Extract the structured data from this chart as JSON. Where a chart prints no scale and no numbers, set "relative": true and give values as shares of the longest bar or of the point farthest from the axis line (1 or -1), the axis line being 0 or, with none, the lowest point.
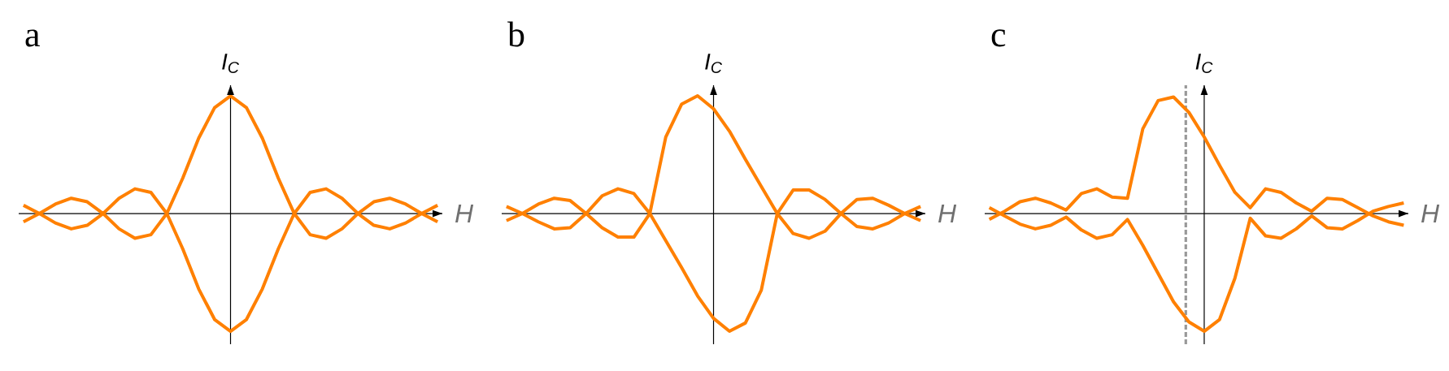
{
  "chart_data": [
    {
      "type": "line",
      "title": "a",
      "xlabel": "H",
      "ylabel": "I$_{C}$",
      "relative": true,
      "categories": [
        null,
        null,
        null,
        null,
        null,
        null,
        null,
        null,
        null,
        null,
        null,
        null,
        null,
        null,
        null,
        null,
        null,
        null,
        null,
        null,
        null,
        null,
        null,
        null,
        null,
        null,
        null
      ],
      "series": [
        {
          "color": "#ff8000",
          "values": [
            -0.07,
            0,
            0.08,
            0.13,
            0.1,
            0,
            0.13,
            0.21,
            0.18,
            0,
            0.3,
            0.64,
            0.9,
            1,
            0.9,
            0.64,
            0.3,
            0,
            0.18,
            0.21,
            0.13,
            0,
            0.1,
            0.13,
            0.08,
            0,
            -0.07
          ]
        },
        {
          "color": "#ff8000",
          "values": [
            0.07,
            0,
            -0.08,
            -0.13,
            -0.1,
            0,
            -0.13,
            -0.21,
            -0.18,
            0,
            -0.3,
            -0.64,
            -0.9,
            -1,
            -0.9,
            -0.64,
            -0.3,
            0,
            -0.18,
            -0.21,
            -0.13,
            0,
            -0.1,
            -0.13,
            -0.08,
            0,
            0.07
          ]
        }
      ]
    },
    {
      "type": "line",
      "title": "b",
      "xlabel": "H",
      "ylabel": "I$_{C}$",
      "relative": true,
      "categories": [
        null,
        null,
        null,
        null,
        null,
        null,
        null,
        null,
        null,
        null,
        null,
        null,
        null,
        null,
        null,
        null,
        null,
        null,
        null,
        null,
        null,
        null,
        null,
        null,
        null,
        null,
        null
      ],
      "series": [
        {
          "color": "#ff8000",
          "values": [
            -0.06,
            0,
            0.08,
            0.13,
            0.11,
            0,
            0.15,
            0.21,
            0.17,
            0,
            0.65,
            0.93,
            1,
            0.89,
            0.7,
            0.46,
            0.23,
            0,
            0.2,
            0.2,
            0.12,
            0,
            0.12,
            0.13,
            0.07,
            0,
            -0.06
          ]
        },
        {
          "color": "#ff8000",
          "values": [
            0.06,
            0,
            -0.07,
            -0.13,
            -0.12,
            0,
            -0.12,
            -0.2,
            -0.2,
            0,
            -0.23,
            -0.46,
            -0.7,
            -0.89,
            -1,
            -0.93,
            -0.65,
            0,
            -0.17,
            -0.21,
            -0.15,
            0,
            -0.11,
            -0.13,
            -0.08,
            0,
            0.06
          ]
        }
      ]
    },
    {
      "type": "line",
      "title": "c",
      "xlabel": "H",
      "ylabel": "I$_{C}$",
      "relative": true,
      "categories": [
        null,
        null,
        null,
        null,
        null,
        null,
        null,
        null,
        null,
        null,
        null,
        null,
        null,
        null,
        null,
        null,
        null,
        null,
        null,
        null,
        null,
        null,
        null,
        null,
        null,
        null,
        null,
        null
      ],
      "series": [
        {
          "color": "#ff8000",
          "values": [
            -0.05,
            0.02,
            0.1,
            0.13,
            0.09,
            0.03,
            0.17,
            0.21,
            0.14,
            0.13,
            0.72,
            0.96,
            0.99,
            0.86,
            0.65,
            0.41,
            0.18,
            0.05,
            0.21,
            0.18,
            0.09,
            0.02,
            0.13,
            0.12,
            0.05,
            -0.02,
            -0.07,
            -0.1
          ]
        },
        {
          "color": "#ff8000",
          "values": [
            0.05,
            -0.02,
            -0.09,
            -0.13,
            -0.1,
            -0.03,
            -0.14,
            -0.21,
            -0.18,
            -0.05,
            -0.27,
            -0.51,
            -0.75,
            -0.92,
            -1,
            -0.9,
            -0.55,
            -0.04,
            -0.19,
            -0.21,
            -0.13,
            -0.02,
            -0.12,
            -0.13,
            -0.06,
            0.02,
            0.06,
            0.09
          ]
        }
      ]
    }
  ]
}
